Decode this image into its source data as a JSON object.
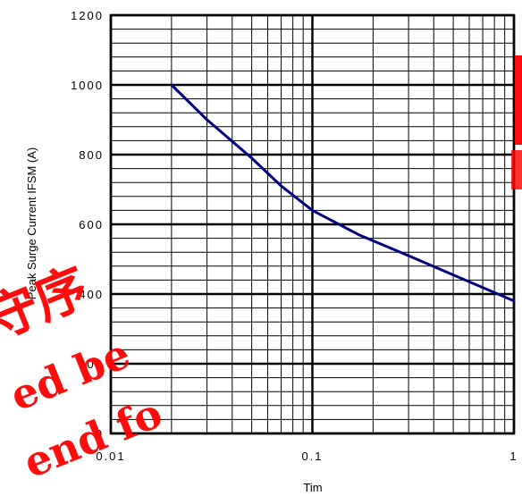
{
  "chart_data": {
    "type": "line",
    "xscale": "log",
    "xlim": [
      0.01,
      1
    ],
    "ylim": [
      0,
      1200
    ],
    "x_ticks": [
      "0.01",
      "0.1",
      "1"
    ],
    "y_ticks": [
      "0",
      "200",
      "400",
      "600",
      "800",
      "1000",
      "1200"
    ],
    "xlabel": "Tim",
    "ylabel": "Peak Surge Current IFSM (A)",
    "grid": true,
    "series": [
      {
        "color": "#000080",
        "x": [
          0.02,
          0.03,
          0.05,
          0.07,
          0.1,
          0.17,
          0.3,
          0.5,
          1.0
        ],
        "y": [
          1000,
          900,
          790,
          710,
          640,
          570,
          510,
          455,
          380
        ]
      }
    ]
  },
  "watermark": {
    "color": "#ff0000",
    "lines": [
      "守序",
      "ed be",
      "end fo"
    ]
  }
}
